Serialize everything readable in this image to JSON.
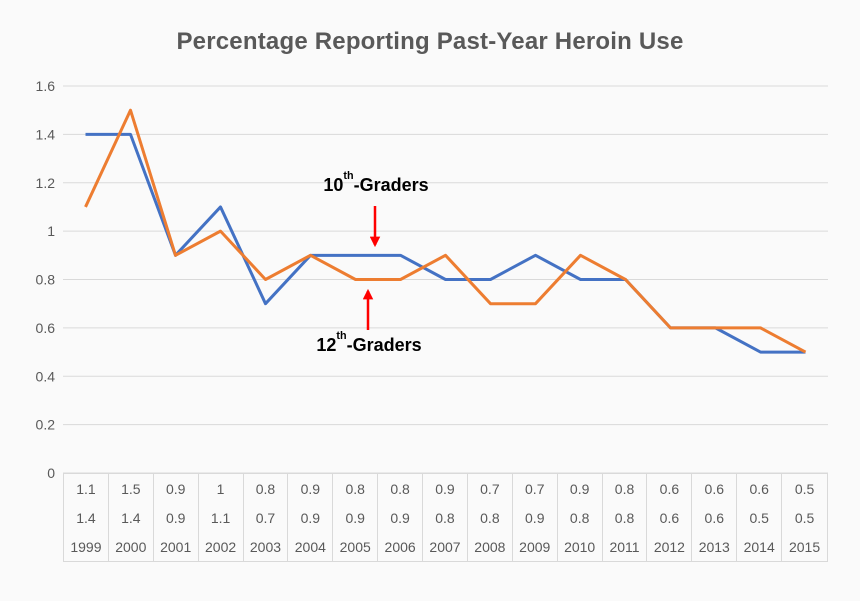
{
  "title": "Percentage Reporting Past-Year Heroin Use",
  "colors": {
    "background": "#fafafa",
    "blue_line": "#4472C4",
    "orange_line": "#ED7D31",
    "arrow": "#FF0000",
    "grid": "#d9d9d9",
    "axis_text": "#595959",
    "title_text": "#595959",
    "table_text": "#595959",
    "annotation_text": "#000000"
  },
  "chart_data": {
    "type": "line",
    "title": "Percentage Reporting Past-Year Heroin Use",
    "categories": [
      "1999",
      "2000",
      "2001",
      "2002",
      "2003",
      "2004",
      "2005",
      "2006",
      "2007",
      "2008",
      "2009",
      "2010",
      "2011",
      "2012",
      "2013",
      "2014",
      "2015"
    ],
    "series": [
      {
        "name": "12th-Graders",
        "color": "#ED7D31",
        "values": [
          1.1,
          1.5,
          0.9,
          1,
          0.8,
          0.9,
          0.8,
          0.8,
          0.9,
          0.7,
          0.7,
          0.9,
          0.8,
          0.6,
          0.6,
          0.6,
          0.5
        ]
      },
      {
        "name": "10th-Graders",
        "color": "#4472C4",
        "values": [
          1.4,
          1.4,
          0.9,
          1.1,
          0.7,
          0.9,
          0.9,
          0.9,
          0.8,
          0.8,
          0.9,
          0.8,
          0.8,
          0.6,
          0.6,
          0.5,
          0.5
        ]
      }
    ],
    "ylim": [
      0,
      1.6
    ],
    "yticks": [
      1.6,
      1.4,
      1.2,
      1,
      0.8,
      0.6,
      0.4,
      0.2,
      0
    ],
    "ytick_labels": [
      "1.6",
      "1.4",
      "1.2",
      "1",
      "0.8",
      "0.6",
      "0.4",
      "0.2",
      "0"
    ],
    "grid": true,
    "legend": "none",
    "data_table": true,
    "table_rows_order": [
      "12th-Graders values",
      "10th-Graders values",
      "years"
    ]
  },
  "annotations": [
    {
      "text": "10th-Graders",
      "num": "10",
      "sup": "th",
      "rest": "-Graders",
      "series": "10th-Graders",
      "arrow_direction": "down"
    },
    {
      "text": "12th-Graders",
      "num": "12",
      "sup": "th",
      "rest": "-Graders",
      "series": "12th-Graders",
      "arrow_direction": "up"
    }
  ]
}
